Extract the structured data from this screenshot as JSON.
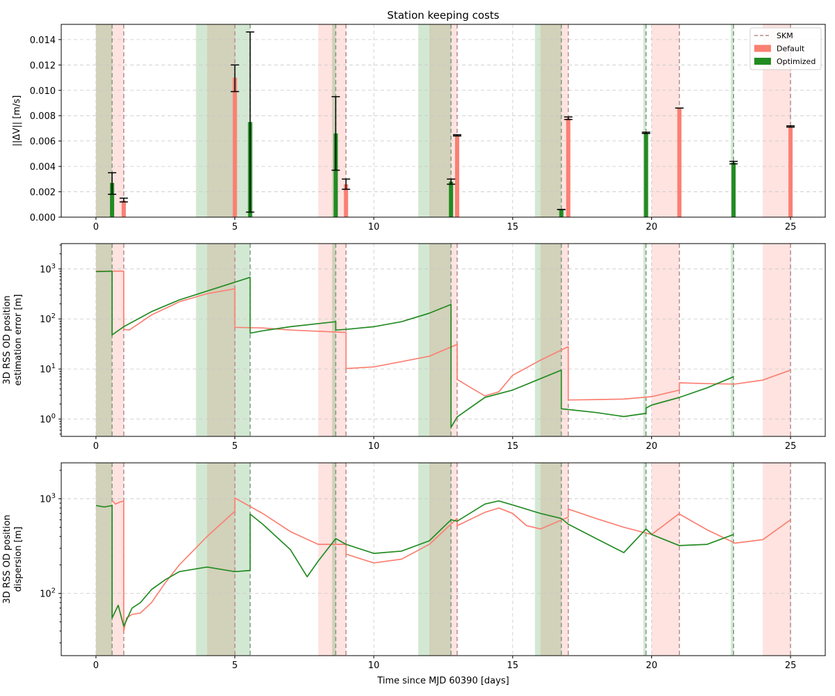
{
  "figure": {
    "title": "Station keeping costs",
    "xlabel": "Time since MJD 60390 [days]"
  },
  "colors": {
    "default": "#fa8072",
    "optimized": "#228b22",
    "skm_line": "#b58a8a",
    "grid": "#c8c8c8"
  },
  "legend": {
    "position": "top-right",
    "items": [
      {
        "label": "SKM",
        "style": "dashed-line"
      },
      {
        "label": "Default",
        "style": "patch-default"
      },
      {
        "label": "Optimized",
        "style": "patch-optimized"
      }
    ]
  },
  "chart_data": [
    {
      "type": "bar",
      "title": "Station keeping costs",
      "ylabel": "||ΔV|| [m/s]",
      "xlim": [
        -1.25,
        26.25
      ],
      "ylim": [
        0,
        0.0152
      ],
      "xticks": [
        0,
        5,
        10,
        15,
        20,
        25
      ],
      "yticks": [
        0.0,
        0.002,
        0.004,
        0.006,
        0.008,
        0.01,
        0.012,
        0.014
      ],
      "ytick_labels": [
        "0.000",
        "0.002",
        "0.004",
        "0.006",
        "0.008",
        "0.010",
        "0.012",
        "0.014"
      ],
      "grid": true,
      "series": [
        {
          "name": "Optimized",
          "x": [
            0.58,
            5.55,
            8.63,
            12.78,
            16.75,
            19.8,
            22.95
          ],
          "values": [
            0.0027,
            0.0075,
            0.0066,
            0.0028,
            0.0006,
            0.0066,
            0.0043
          ],
          "err_low": [
            0.0018,
            0.0004,
            0.0037,
            0.0026,
            0.0006,
            0.0066,
            0.0042
          ],
          "err_high": [
            0.0035,
            0.0146,
            0.0095,
            0.003,
            0.0006,
            0.0067,
            0.0044
          ]
        },
        {
          "name": "Default",
          "x": [
            1.0,
            5.0,
            9.0,
            13.0,
            17.0,
            21.0,
            25.0
          ],
          "values": [
            0.0013,
            0.011,
            0.0026,
            0.0064,
            0.0078,
            0.0086,
            0.0071
          ],
          "err_low": [
            0.0012,
            0.0099,
            0.0022,
            0.0064,
            0.0077,
            0.0086,
            0.0071
          ],
          "err_high": [
            0.0015,
            0.012,
            0.003,
            0.0065,
            0.0079,
            0.0086,
            0.0072
          ]
        }
      ]
    },
    {
      "type": "line",
      "ylabel": "3D RSS OD position estimation error [m]",
      "yscale": "log",
      "xlim": [
        -1.25,
        26.25
      ],
      "ylim": [
        0.45,
        3200
      ],
      "xticks": [
        0,
        5,
        10,
        15,
        20,
        25
      ],
      "ytick_labels": [
        "10^0",
        "10^1",
        "10^2",
        "10^3"
      ],
      "grid": true,
      "series": [
        {
          "name": "Default",
          "x": [
            0,
            1.0,
            1.0,
            1.2,
            2,
            3,
            4,
            5,
            5.0,
            6,
            7,
            8.9,
            9.0,
            9.0,
            10,
            11,
            12,
            13.0,
            13.0,
            13.5,
            14.0,
            14.5,
            15.0,
            16.0,
            17.0,
            17.0,
            18,
            19,
            20,
            21.0,
            21.0,
            22,
            23,
            24,
            25
          ],
          "values": [
            900,
            900,
            62,
            60,
            120,
            220,
            320,
            400,
            68,
            66,
            60,
            54,
            54,
            10.2,
            11,
            14,
            18,
            31,
            6.2,
            4.2,
            2.9,
            3.5,
            7.5,
            15,
            28,
            2.4,
            2.45,
            2.5,
            2.8,
            3.8,
            5.3,
            5.1,
            5.0,
            6,
            9.5
          ]
        },
        {
          "name": "Optimized",
          "x": [
            0,
            0.58,
            0.58,
            1,
            2,
            3,
            4,
            5.55,
            5.55,
            6,
            7,
            8.63,
            8.63,
            9,
            10,
            11,
            12,
            12.78,
            12.78,
            13,
            14,
            15,
            16.75,
            16.75,
            17,
            18,
            19,
            19.8,
            19.8,
            20,
            21,
            22,
            22.95
          ],
          "values": [
            880,
            900,
            48,
            70,
            140,
            240,
            360,
            680,
            52,
            58,
            70,
            88,
            60,
            62,
            70,
            88,
            130,
            195,
            0.68,
            1.1,
            2.7,
            3.8,
            9.5,
            1.6,
            1.55,
            1.35,
            1.12,
            1.3,
            1.65,
            1.9,
            2.7,
            4.2,
            7.0
          ]
        }
      ]
    },
    {
      "type": "line",
      "ylabel": "3D RSS OD position dispersion [m]",
      "yscale": "log",
      "xlim": [
        -1.25,
        26.25
      ],
      "ylim": [
        22,
        2400
      ],
      "xticks": [
        0,
        5,
        10,
        15,
        20,
        25
      ],
      "ytick_labels": [
        "10^2",
        "10^3"
      ],
      "grid": true,
      "series": [
        {
          "name": "Default",
          "x": [
            0.6,
            0.7,
            0.85,
            1.0,
            1.0,
            1.1,
            1.3,
            1.6,
            2,
            2.5,
            3,
            4,
            5.0,
            5.0,
            6,
            7,
            8,
            9.0,
            9.0,
            10,
            11,
            12,
            13.0,
            13.0,
            14,
            14.5,
            15,
            15.5,
            16,
            17.0,
            17.0,
            18,
            19,
            20,
            21.0,
            21.0,
            22,
            23,
            24,
            25
          ],
          "values": [
            950,
            880,
            920,
            950,
            40,
            55,
            60,
            62,
            80,
            130,
            200,
            400,
            740,
            1020,
            700,
            450,
            330,
            330,
            260,
            210,
            230,
            330,
            620,
            520,
            720,
            800,
            700,
            520,
            480,
            640,
            780,
            620,
            500,
            420,
            700,
            690,
            470,
            340,
            370,
            600
          ]
        },
        {
          "name": "Optimized",
          "x": [
            0,
            0.3,
            0.58,
            0.58,
            0.8,
            1.0,
            1.3,
            1.6,
            2,
            2.5,
            3,
            4,
            5.0,
            5.55,
            5.55,
            6,
            7,
            7.6,
            8.0,
            8.63,
            9,
            10,
            11,
            12,
            12.78,
            13,
            14,
            14.5,
            15,
            16,
            16.75,
            17,
            18,
            19,
            19.8,
            20,
            21,
            22,
            22.95
          ],
          "values": [
            850,
            820,
            850,
            55,
            75,
            45,
            70,
            80,
            110,
            140,
            170,
            190,
            170,
            175,
            690,
            540,
            290,
            150,
            220,
            380,
            330,
            265,
            280,
            360,
            600,
            580,
            880,
            950,
            860,
            700,
            620,
            540,
            380,
            270,
            480,
            420,
            320,
            330,
            420
          ]
        }
      ]
    }
  ],
  "events": {
    "optimized_skm": [
      0.58,
      5.55,
      8.63,
      12.78,
      16.75,
      19.8,
      22.95
    ],
    "default_skm": [
      1.0,
      5.0,
      9.0,
      13.0,
      17.0,
      21.0,
      25.0
    ],
    "optimized_tracking_windows": [
      [
        0.0,
        0.58
      ],
      [
        3.6,
        5.55
      ],
      [
        8.5,
        8.63
      ],
      [
        11.6,
        12.78
      ],
      [
        15.8,
        16.75
      ],
      [
        19.7,
        19.8
      ],
      [
        22.85,
        22.95
      ]
    ],
    "default_tracking_windows": [
      [
        0.0,
        1.0
      ],
      [
        4.0,
        5.0
      ],
      [
        8.0,
        9.0
      ],
      [
        12.0,
        13.0
      ],
      [
        16.0,
        17.0
      ],
      [
        20.0,
        21.0
      ],
      [
        24.0,
        25.0
      ]
    ]
  }
}
